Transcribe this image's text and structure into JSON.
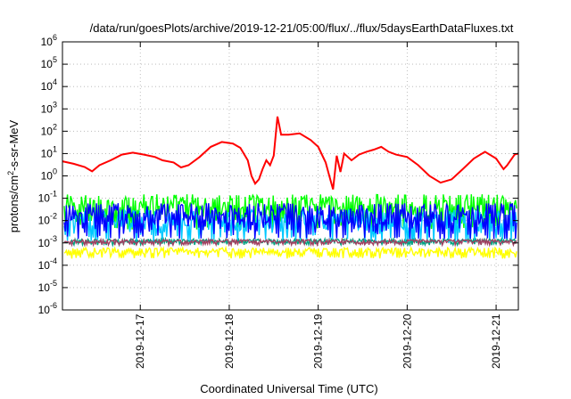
{
  "chart_data": {
    "type": "line",
    "title": "/data/run/goesPlots/archive/2019-12-21/05:00/flux/../flux/5daysEarthDataFluxes.txt",
    "xlabel": "Coordinated Universal Time (UTC)",
    "ylabel": "protons/cm²-s-sr-MeV",
    "y_scale": "log",
    "ylim": [
      1e-06,
      1000000.0
    ],
    "y_ticks": [
      {
        "base": "10",
        "exp": "-6",
        "value": 1e-06
      },
      {
        "base": "10",
        "exp": "-5",
        "value": 1e-05
      },
      {
        "base": "10",
        "exp": "-4",
        "value": 0.0001
      },
      {
        "base": "10",
        "exp": "-3",
        "value": 0.001
      },
      {
        "base": "10",
        "exp": "-2",
        "value": 0.01
      },
      {
        "base": "10",
        "exp": "-1",
        "value": 0.1
      },
      {
        "base": "10",
        "exp": "0",
        "value": 1
      },
      {
        "base": "10",
        "exp": "1",
        "value": 10
      },
      {
        "base": "10",
        "exp": "2",
        "value": 100
      },
      {
        "base": "10",
        "exp": "3",
        "value": 1000
      },
      {
        "base": "10",
        "exp": "4",
        "value": 10000
      },
      {
        "base": "10",
        "exp": "5",
        "value": 100000
      },
      {
        "base": "10",
        "exp": "6",
        "value": 1000000
      }
    ],
    "xlim": [
      "2019-12-16 03:00",
      "2019-12-21 06:00"
    ],
    "x_ticks": [
      {
        "label": "2019-12-17",
        "value": "2019-12-17 00:00"
      },
      {
        "label": "2019-12-18",
        "value": "2019-12-18 00:00"
      },
      {
        "label": "2019-12-19",
        "value": "2019-12-19 00:00"
      },
      {
        "label": "2019-12-20",
        "value": "2019-12-20 00:00"
      },
      {
        "label": "2019-12-21",
        "value": "2019-12-21 00:00"
      }
    ],
    "grid": true,
    "legend": "none",
    "series": [
      {
        "color": "#ff0000",
        "style": "line",
        "points": [
          [
            "2019-12-16 03:00",
            4.5
          ],
          [
            "2019-12-16 06:00",
            3.5
          ],
          [
            "2019-12-16 09:00",
            2.5
          ],
          [
            "2019-12-16 11:00",
            1.6
          ],
          [
            "2019-12-16 13:00",
            3
          ],
          [
            "2019-12-16 16:00",
            5
          ],
          [
            "2019-12-16 19:00",
            9
          ],
          [
            "2019-12-16 22:00",
            11
          ],
          [
            "2019-12-17 01:00",
            9
          ],
          [
            "2019-12-17 04:00",
            7
          ],
          [
            "2019-12-17 06:00",
            5
          ],
          [
            "2019-12-17 09:00",
            4
          ],
          [
            "2019-12-17 11:00",
            2.4
          ],
          [
            "2019-12-17 13:00",
            3
          ],
          [
            "2019-12-17 16:00",
            7
          ],
          [
            "2019-12-17 19:00",
            20
          ],
          [
            "2019-12-17 22:00",
            33
          ],
          [
            "2019-12-18 01:00",
            28
          ],
          [
            "2019-12-18 03:00",
            18
          ],
          [
            "2019-12-18 05:00",
            5
          ],
          [
            "2019-12-18 06:00",
            1
          ],
          [
            "2019-12-18 07:00",
            0.45
          ],
          [
            "2019-12-18 08:00",
            0.7
          ],
          [
            "2019-12-18 09:00",
            2
          ],
          [
            "2019-12-18 10:00",
            5
          ],
          [
            "2019-12-18 11:00",
            3
          ],
          [
            "2019-12-18 12:00",
            8
          ],
          [
            "2019-12-18 13:00",
            450
          ],
          [
            "2019-12-18 14:00",
            70
          ],
          [
            "2019-12-18 16:00",
            70
          ],
          [
            "2019-12-18 19:00",
            80
          ],
          [
            "2019-12-18 22:00",
            40
          ],
          [
            "2019-12-19 00:00",
            20
          ],
          [
            "2019-12-19 02:00",
            4
          ],
          [
            "2019-12-19 03:00",
            1
          ],
          [
            "2019-12-19 04:00",
            0.25
          ],
          [
            "2019-12-19 05:00",
            8
          ],
          [
            "2019-12-19 06:00",
            1.5
          ],
          [
            "2019-12-19 07:00",
            10
          ],
          [
            "2019-12-19 09:00",
            5
          ],
          [
            "2019-12-19 11:00",
            9
          ],
          [
            "2019-12-19 13:00",
            12
          ],
          [
            "2019-12-19 15:00",
            15
          ],
          [
            "2019-12-19 17:00",
            20
          ],
          [
            "2019-12-19 19:00",
            12
          ],
          [
            "2019-12-19 21:00",
            9
          ],
          [
            "2019-12-20 00:00",
            7
          ],
          [
            "2019-12-20 03:00",
            3
          ],
          [
            "2019-12-20 06:00",
            1
          ],
          [
            "2019-12-20 09:00",
            0.5
          ],
          [
            "2019-12-20 12:00",
            0.7
          ],
          [
            "2019-12-20 15:00",
            2
          ],
          [
            "2019-12-20 18:00",
            6
          ],
          [
            "2019-12-20 21:00",
            12
          ],
          [
            "2019-12-21 00:00",
            6
          ],
          [
            "2019-12-21 02:00",
            2
          ],
          [
            "2019-12-21 03:00",
            3
          ],
          [
            "2019-12-21 05:00",
            9
          ],
          [
            "2019-12-21 06:00",
            10
          ]
        ]
      },
      {
        "color": "#00ff00",
        "style": "noise-band",
        "low": 0.004,
        "high": 0.15
      },
      {
        "color": "#00c8ff",
        "style": "noise-band",
        "low": 0.001,
        "high": 0.03
      },
      {
        "color": "#0000ff",
        "style": "noise-band",
        "low": 0.0015,
        "high": 0.06
      },
      {
        "color": "#ffff00",
        "style": "noise-band",
        "low": 0.0002,
        "high": 0.0006
      },
      {
        "color": "#00a080",
        "style": "noise-band",
        "low": 0.0008,
        "high": 0.0015
      },
      {
        "color": "#a04060",
        "style": "noise-band",
        "low": 0.0008,
        "high": 0.0014
      }
    ]
  }
}
